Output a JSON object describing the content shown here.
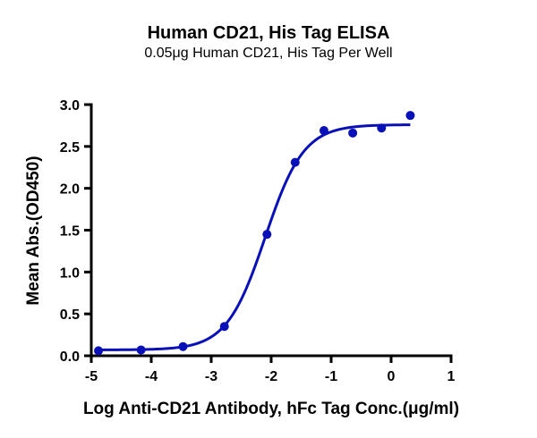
{
  "chart_data": {
    "type": "scatter",
    "title": "Human CD21, His Tag ELISA",
    "subtitle": "0.05μg Human CD21, His Tag Per Well",
    "xlabel": "Log Anti-CD21 Antibody, hFc Tag Conc.(μg/ml)",
    "ylabel": "Mean Abs.(OD450)",
    "xlim": [
      -5,
      1
    ],
    "ylim": [
      0,
      3.0
    ],
    "x_ticks": [
      "-5",
      "-4",
      "-3",
      "-2",
      "-1",
      "0",
      "1"
    ],
    "y_ticks": [
      "0.0",
      "0.5",
      "1.0",
      "1.5",
      "2.0",
      "2.5",
      "3.0"
    ],
    "grid": false,
    "legend": null,
    "series": [
      {
        "name": "Mean Abs.",
        "color": "#0a10b8",
        "marker": "circle",
        "fit": "4PL sigmoidal curve",
        "x": [
          -4.88,
          -4.17,
          -3.47,
          -2.78,
          -2.07,
          -1.6,
          -1.12,
          -0.64,
          -0.16,
          0.32
        ],
        "y": [
          0.06,
          0.07,
          0.11,
          0.35,
          1.45,
          2.31,
          2.69,
          2.66,
          2.72,
          2.87
        ]
      }
    ],
    "fit_params": {
      "bottom": 0.07,
      "top": 2.76,
      "logEC50": -2.1,
      "hill": 1.35
    }
  }
}
